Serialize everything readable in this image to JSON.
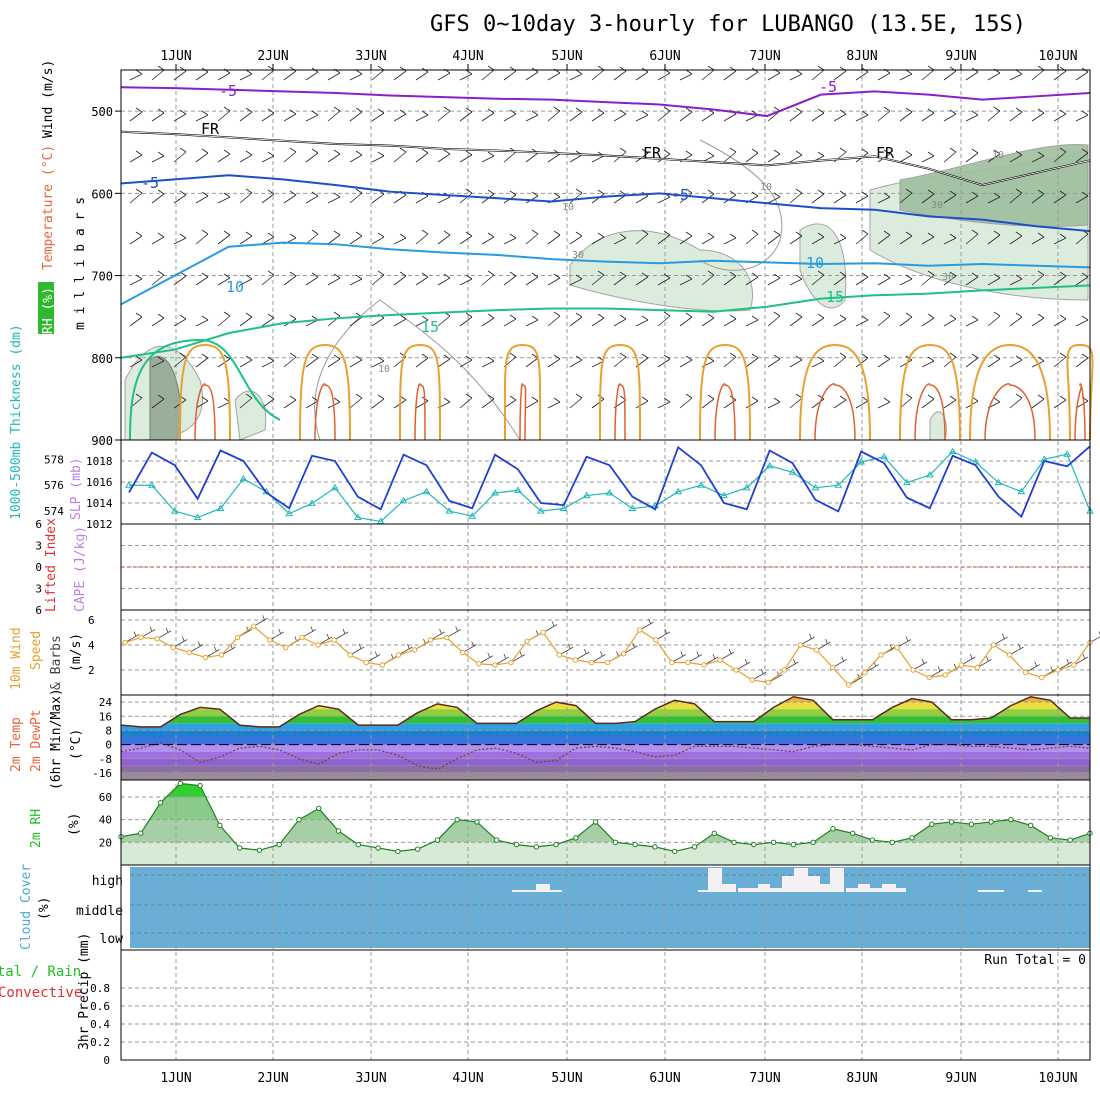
{
  "title": "GFS 0~10day 3-hourly for LUBANGO (13.5E, 15S)",
  "chart_data": [
    {
      "panel": "upper-air",
      "type": "area",
      "left_label": [
        "RH (%)",
        "Temperature (°C)",
        "Wind (m/s)"
      ],
      "ylabel": "millibars",
      "y_ticks": [
        "500",
        "600",
        "700",
        "800",
        "900"
      ],
      "ylim": [
        450,
        900
      ],
      "x_ticks": [
        "1JUN",
        "2JUN",
        "3JUN",
        "4JUN",
        "5JUN",
        "6JUN",
        "7JUN",
        "8JUN",
        "9JUN",
        "10JUN"
      ],
      "contour_labels": [
        "-5",
        "FR",
        "-5",
        "FR",
        "FR",
        "-5",
        "-5",
        "10",
        "10",
        "15",
        "15",
        "10",
        "30",
        "30",
        "10",
        "30",
        "10",
        "10"
      ],
      "isotherms": [
        {
          "level": "-5",
          "color": "#8a1fc8",
          "values": [
            471,
            472,
            474,
            476,
            478,
            481,
            483,
            485,
            486,
            489,
            492,
            498,
            506,
            480,
            476,
            480,
            486,
            482,
            478
          ]
        },
        {
          "level": "FR",
          "color": "#000000",
          "values": [
            525,
            528,
            532,
            536,
            540,
            542,
            546,
            548,
            551,
            554,
            558,
            562,
            566,
            560,
            555,
            570,
            590,
            575,
            560
          ]
        },
        {
          "level": "-5b",
          "color": "#1f4fc8",
          "values": [
            588,
            583,
            578,
            583,
            590,
            598,
            602,
            606,
            610,
            604,
            600,
            606,
            612,
            618,
            620,
            628,
            632,
            640,
            646
          ]
        },
        {
          "level": "10",
          "color": "#2a9ae0",
          "values": [
            735,
            700,
            665,
            660,
            662,
            668,
            672,
            675,
            680,
            683,
            685,
            682,
            684,
            686,
            685,
            688,
            686,
            688,
            690
          ]
        },
        {
          "level": "15",
          "color": "#1fc088",
          "values": [
            800,
            790,
            770,
            758,
            752,
            748,
            745,
            742,
            740,
            740,
            742,
            744,
            738,
            728,
            724,
            722,
            718,
            715,
            712
          ]
        }
      ]
    },
    {
      "panel": "sfc-pressure",
      "type": "line",
      "left_label": [
        "1000-500mb Thickness (dm)",
        "SLP (mb)"
      ],
      "thickness_ticks": [
        "578",
        "576",
        "574"
      ],
      "slp_ticks": [
        "1018",
        "1016",
        "1014",
        "1012"
      ],
      "series": [
        {
          "name": "SLP (mb)",
          "values": [
            1015,
            1018.8,
            1017.6,
            1014.4,
            1019,
            1018,
            1015,
            1013.5,
            1018.5,
            1018,
            1014.6,
            1013.4,
            1018.6,
            1017.6,
            1014.2,
            1013.5,
            1018.6,
            1017.2,
            1014,
            1013.8,
            1018.4,
            1017.6,
            1014.6,
            1013.4,
            1019.3,
            1017.6,
            1014,
            1013.4,
            1019,
            1017.8,
            1014.3,
            1013.2,
            1018.9,
            1017.8,
            1014.5,
            1013.5,
            1018.5,
            1017.6,
            1014.6,
            1012.7,
            1018,
            1017.5,
            1019.4
          ]
        },
        {
          "name": "Thickness (dm)",
          "values": [
            576,
            576,
            574,
            573.5,
            574.2,
            576.5,
            575.5,
            573.8,
            574.6,
            575.8,
            573.5,
            573.2,
            574.8,
            575.5,
            574,
            573.6,
            575.4,
            575.6,
            574,
            574.2,
            575.2,
            575.4,
            574.2,
            574.4,
            575.5,
            576,
            575.2,
            575.8,
            577.5,
            577,
            575.8,
            576,
            577.8,
            578.2,
            576.2,
            576.8,
            578.6,
            577.8,
            576.2,
            575.5,
            578,
            578.4,
            574
          ]
        }
      ]
    },
    {
      "panel": "instability",
      "type": "line",
      "left_label": [
        "Lifted Index",
        "CAPE (J/kg)"
      ],
      "y_ticks": [
        "6",
        "3",
        "0",
        "3",
        "6"
      ],
      "ylim": [
        -6,
        6
      ],
      "reference_value": 0
    },
    {
      "panel": "wind10m",
      "type": "line",
      "left_label": [
        "10m Wind",
        "Speed",
        "& Barbs"
      ],
      "ylabel": "(m/s)",
      "y_ticks": [
        "6",
        "4",
        "2"
      ],
      "ylim": [
        0,
        6.8
      ],
      "series": [
        {
          "name": "10m Wind Speed",
          "values": [
            4.2,
            4.6,
            4.5,
            3.8,
            3.4,
            3.0,
            3.2,
            4.6,
            5.5,
            4.4,
            3.8,
            4.6,
            4.0,
            4.4,
            3.2,
            2.6,
            2.4,
            3.2,
            3.6,
            4.4,
            4.6,
            3.4,
            2.5,
            2.4,
            2.6,
            4.3,
            5.0,
            3.2,
            2.8,
            2.6,
            2.6,
            3.3,
            5.2,
            4.4,
            2.6,
            2.6,
            2.4,
            2.8,
            2.0,
            1.2,
            1.0,
            2.0,
            4.0,
            3.6,
            2.2,
            0.8,
            1.8,
            3.2,
            3.8,
            2.0,
            1.4,
            1.6,
            2.4,
            2.2,
            4.0,
            3.2,
            1.8,
            1.4,
            2.0,
            2.4,
            4.2
          ]
        }
      ]
    },
    {
      "panel": "temperature",
      "type": "area",
      "left_label": [
        "2m Temp",
        "2m DewPt",
        "(6hr Min/Max)"
      ],
      "ylabel": "(°C)",
      "y_ticks": [
        "24",
        "16",
        "8",
        "0",
        "-8",
        "-16"
      ],
      "ylim": [
        -20,
        28
      ],
      "series": [
        {
          "name": "2m Temp",
          "values": [
            11,
            10,
            10,
            17,
            21,
            20,
            11,
            10,
            10,
            17,
            22,
            20,
            11,
            11,
            11,
            18,
            23,
            21,
            12,
            12,
            12,
            19,
            24,
            22,
            12,
            12,
            13,
            20,
            25,
            23,
            13,
            13,
            13,
            21,
            27,
            25,
            14,
            14,
            14,
            21,
            26,
            24,
            14,
            14,
            15,
            22,
            27,
            25,
            15,
            15
          ]
        },
        {
          "name": "2m DewPt",
          "values": [
            -4,
            -2,
            1,
            -3,
            -10,
            -7,
            -2,
            -1,
            -3,
            -8,
            -11,
            -5,
            -3,
            -3,
            -6,
            -12,
            -14,
            -8,
            -3,
            -2,
            -5,
            -10,
            -9,
            -2,
            -1,
            -2,
            -4,
            -7,
            -6,
            -1,
            -1,
            -1,
            -2,
            -3,
            -4,
            -1,
            0,
            0,
            -1,
            -2,
            -3,
            0,
            0,
            -1,
            -1,
            -2,
            -3,
            -2,
            -1,
            -2
          ]
        }
      ]
    },
    {
      "panel": "rh2m",
      "type": "area",
      "left_label": [
        "2m RH"
      ],
      "ylabel": "(%)",
      "y_ticks": [
        "60",
        "40",
        "20"
      ],
      "ylim": [
        0,
        75
      ],
      "series": [
        {
          "name": "2m RH",
          "values": [
            25,
            28,
            55,
            72,
            70,
            35,
            15,
            13,
            18,
            40,
            50,
            30,
            18,
            15,
            12,
            14,
            22,
            40,
            38,
            22,
            18,
            16,
            18,
            24,
            38,
            20,
            18,
            16,
            12,
            16,
            28,
            20,
            18,
            20,
            18,
            20,
            32,
            28,
            22,
            20,
            24,
            36,
            38,
            36,
            38,
            40,
            35,
            24,
            22,
            28
          ]
        }
      ]
    },
    {
      "panel": "cloud",
      "type": "bar",
      "left_label": [
        "Cloud Cover"
      ],
      "ylabel": "(%)",
      "y_ticks": [
        "high",
        "middle",
        "low"
      ]
    },
    {
      "panel": "precip",
      "type": "bar",
      "left_label": [
        "Total / Rain",
        "Convective"
      ],
      "ylabel": "3hr Precip (mm)",
      "y_ticks": [
        "0.8",
        "0.6",
        "0.4",
        "0.2",
        "0"
      ],
      "ylim": [
        0,
        1
      ],
      "annotation": "Run Total = 0"
    }
  ],
  "colors": {
    "rh_fill": "#2db82d",
    "temp_label": "#e8643c",
    "wind_label_orange": "#e8a030",
    "cyan_label": "#20b8b8",
    "blue_label": "#1f4fc8",
    "purple_label": "#c080e0",
    "red_label": "#e03030",
    "cloud_bg": "#6aaed6",
    "green_label": "#20c020"
  }
}
